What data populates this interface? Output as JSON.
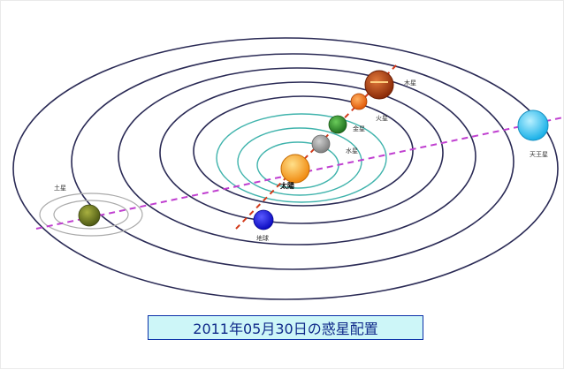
{
  "caption": "2011年05月30日の惑星配置",
  "colors": {
    "orbit_outer": "#2a2a55",
    "orbit_inner": "#3fb3ac",
    "axis_line": "#c040d0",
    "sun_axis": "#d23a1a",
    "caption_bg": "#cdf6f8",
    "caption_border": "#0a2fa8"
  },
  "bodies": {
    "sun": {
      "label": "太陽",
      "color": "#f6a01e"
    },
    "mercury": {
      "label": "水星",
      "color": "#9a9a9a"
    },
    "venus": {
      "label": "金星",
      "color": "#2f8f2f"
    },
    "earth": {
      "label": "地球",
      "color": "#1a1ae0"
    },
    "mars": {
      "label": "火星",
      "color": "#f06a10"
    },
    "jupiter": {
      "label": "木星",
      "color": "#b83a10"
    },
    "saturn": {
      "label": "土星",
      "color": "#6b7a20"
    },
    "uranus": {
      "label": "天王星",
      "color": "#38c8f2"
    }
  }
}
